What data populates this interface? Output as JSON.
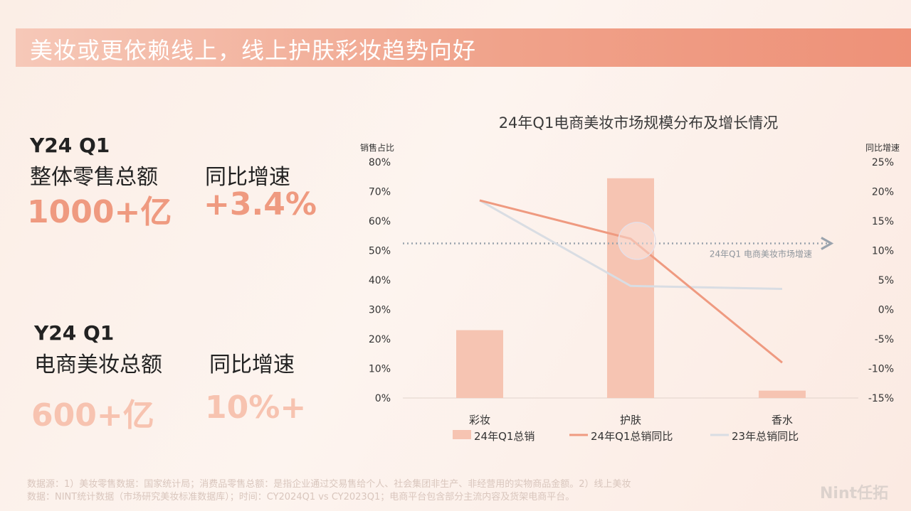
{
  "title": "美妆或更依赖线上，线上护肤彩妆趋势向好",
  "kpi_top": {
    "period": "Y24 Q1",
    "label_a": "整体零售总额",
    "value_a": "1000+亿",
    "label_b": "同比增速",
    "value_b": "+3.4%"
  },
  "kpi_bottom": {
    "period": "Y24 Q1",
    "label_a": "电商美妆总额",
    "value_a": "600+亿",
    "label_b": "同比增速",
    "value_b": "10%+"
  },
  "chart_data": {
    "type": "bar",
    "title": "24年Q1电商美妆市场规模分布及增长情况",
    "ylabel": "销售占比",
    "y2label": "同比增速",
    "categories": [
      "彩妆",
      "护肤",
      "香水"
    ],
    "ylim": [
      0,
      80
    ],
    "y2lim": [
      -15,
      25
    ],
    "yticks": [
      "0%",
      "10%",
      "20%",
      "30%",
      "40%",
      "50%",
      "60%",
      "70%",
      "80%"
    ],
    "y2ticks": [
      "-15%",
      "-10%",
      "-5%",
      "0%",
      "5%",
      "10%",
      "15%",
      "20%",
      "25%"
    ],
    "series": [
      {
        "name": "24年Q1总销",
        "type": "bar",
        "axis": "left",
        "values": [
          23,
          74.5,
          2.5
        ],
        "color": "#f6c4b2"
      },
      {
        "name": "24年Q1总销同比",
        "type": "line",
        "axis": "right",
        "values": [
          18.5,
          12,
          -9
        ],
        "color": "#ef9a80"
      },
      {
        "name": "23年总销同比",
        "type": "line",
        "axis": "right",
        "values": [
          18.5,
          4,
          3.5
        ],
        "color": "#d9dde3"
      }
    ],
    "reference_line": {
      "label": "24年Q1 电商美妆市场增速",
      "value": 11.2,
      "axis": "right"
    },
    "legend_position": "bottom"
  },
  "footnote": {
    "line1": "数据源：1）美妆零售数据：国家统计局；消费品零售总额：是指企业通过交易售给个人、社会集团非生产、非经营用的实物商品金额。2）线上美妆",
    "line2": "数据：NINT统计数据（市场研究美妆标准数据库）；时间：CY2024Q1 vs CY2023Q1；电商平台包含部分主流内容及货架电商平台。"
  },
  "brand": "Nint任拓"
}
